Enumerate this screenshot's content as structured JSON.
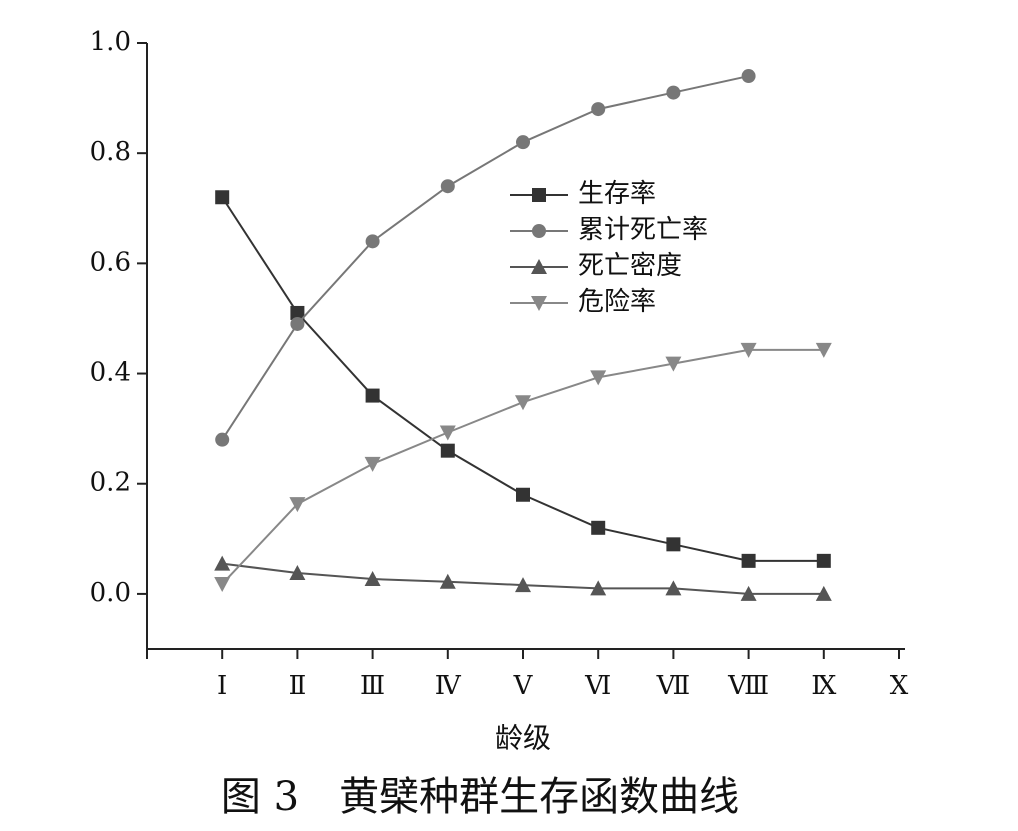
{
  "chart_data": {
    "type": "line",
    "caption": "图 3　黄檗种群生存函数曲线",
    "x_label": "龄级",
    "categories": [
      "Ⅰ",
      "Ⅱ",
      "Ⅲ",
      "Ⅳ",
      "Ⅴ",
      "Ⅵ",
      "Ⅶ",
      "Ⅷ",
      "Ⅸ",
      "Ⅹ"
    ],
    "ylim": [
      -0.1,
      1.0
    ],
    "yticks": [
      {
        "value": 0,
        "label": "0.0"
      },
      0.2,
      0.4,
      0.6,
      0.8,
      {
        "value": 1,
        "label": "1.0"
      }
    ],
    "legend": "upper center",
    "series": [
      {
        "name": "生存率",
        "color": "#333333",
        "marker": "square",
        "values": [
          0.72,
          0.51,
          0.36,
          0.26,
          0.18,
          0.12,
          0.09,
          0.06,
          0.06,
          null
        ]
      },
      {
        "name": "累计死亡率",
        "color": "#777777",
        "marker": "circle",
        "values": [
          0.28,
          0.49,
          0.64,
          0.74,
          0.82,
          0.88,
          0.91,
          0.94,
          null,
          null
        ]
      },
      {
        "name": "死亡密度",
        "color": "#555555",
        "marker": "triangle",
        "values": [
          0.055,
          0.038,
          0.027,
          0.022,
          0.016,
          0.01,
          0.01,
          0,
          0,
          null
        ]
      },
      {
        "name": "危险率",
        "color": "#888888",
        "marker": "triangle-down",
        "values": [
          0.018,
          0.163,
          0.236,
          0.293,
          0.348,
          0.393,
          0.418,
          0.443,
          0.443,
          null
        ]
      }
    ]
  }
}
